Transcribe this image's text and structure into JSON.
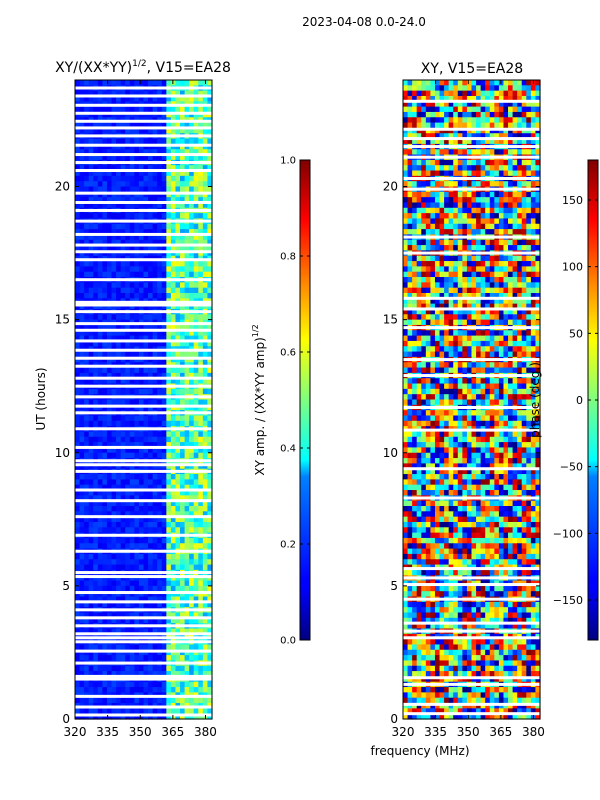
{
  "figure_title": "2023-04-08 0.0-24.0",
  "shared_xlabel": "frequency (MHz)",
  "chart_data": [
    {
      "type": "heatmap",
      "title_main": "XY/(XX*YY)",
      "title_exp": "1/2",
      "title_suffix": ", V15=EA28",
      "ylabel": "UT (hours)",
      "xlim": [
        320,
        383
      ],
      "ylim": [
        0,
        24
      ],
      "xticks": [
        320,
        335,
        350,
        365,
        380
      ],
      "yticks": [
        0,
        5,
        10,
        15,
        20
      ],
      "grid": false,
      "colorbar": {
        "label_main": "XY amp. / (XX*YY amp)",
        "label_exp": "1/2",
        "range": [
          0.0,
          1.0
        ],
        "ticks": [
          "0.0",
          "0.2",
          "0.4",
          "0.6",
          "0.8",
          "1.0"
        ],
        "colormap": "jet"
      },
      "band": {
        "low_freq_range": [
          320,
          363
        ],
        "low_value": 0.15,
        "high_freq_range": [
          363,
          383
        ],
        "high_value": 0.45
      },
      "data_gaps_hours": [
        0.15,
        0.45,
        0.85,
        1.5,
        1.6,
        2.1,
        2.55,
        2.9,
        3.05,
        3.2,
        3.5,
        3.8,
        4.1,
        4.4,
        4.75,
        5.35,
        5.5,
        6.3,
        6.9,
        7.6,
        8.2,
        8.6,
        9.3,
        9.55,
        9.7,
        10.2,
        10.9,
        11.5,
        11.75,
        12.1,
        12.5,
        12.8,
        13.25,
        13.55,
        13.85,
        14.2,
        14.6,
        14.85,
        15.3,
        15.55,
        15.65,
        16.5,
        17.25,
        17.55,
        17.8,
        18.2,
        18.7,
        19.1,
        19.4,
        19.75,
        20.6,
        20.9,
        21.2,
        21.55,
        21.9,
        22.2,
        22.45,
        22.75,
        23.05,
        23.4,
        23.7
      ]
    },
    {
      "type": "heatmap",
      "title": "XY, V15=EA28",
      "xlim": [
        320,
        383
      ],
      "ylim": [
        0,
        24
      ],
      "xticks": [
        320,
        335,
        350,
        365,
        380
      ],
      "yticks": [
        0,
        5,
        10,
        15,
        20
      ],
      "grid": false,
      "colorbar": {
        "label": "phase (deg.)",
        "range": [
          -180,
          180
        ],
        "ticks": [
          "150",
          "100",
          "50",
          "0",
          "−50",
          "−100",
          "−150"
        ],
        "tick_values": [
          150,
          100,
          50,
          0,
          -50,
          -100,
          -150
        ],
        "colormap": "jet"
      },
      "data_gaps_hours": [
        0.2,
        0.55,
        1.3,
        1.55,
        3.05,
        3.3,
        3.6,
        4.5,
        5.05,
        5.3,
        5.65,
        8.3,
        9.4,
        10.85,
        11.7,
        12.9,
        13.5,
        14.7,
        15.4,
        15.8,
        17.5,
        18.1,
        19.9,
        20.3,
        21.1,
        21.5,
        21.8,
        22.15,
        23.2
      ]
    }
  ]
}
